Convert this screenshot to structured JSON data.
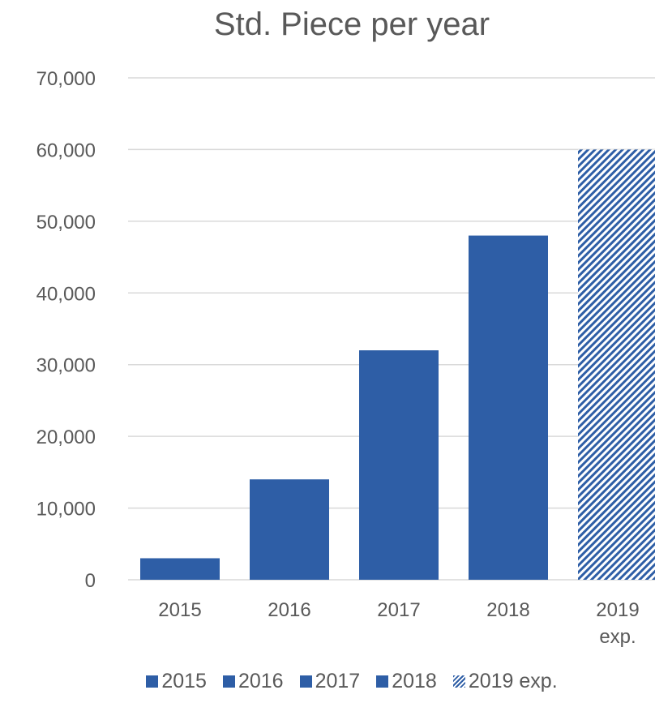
{
  "chart_data": {
    "type": "bar",
    "title": "Std. Piece per year",
    "categories": [
      "2015",
      "2016",
      "2017",
      "2018",
      "2019 exp."
    ],
    "category_labels": [
      [
        "2015"
      ],
      [
        "2016"
      ],
      [
        "2017"
      ],
      [
        "2018"
      ],
      [
        "2019",
        "exp."
      ]
    ],
    "values": [
      3000,
      14000,
      32000,
      48000,
      60000
    ],
    "ylim": [
      0,
      70000
    ],
    "y_ticks": [
      "0",
      "10,000",
      "20,000",
      "30,000",
      "40,000",
      "50,000",
      "60,000",
      "70,000"
    ],
    "y_tick_values": [
      0,
      10000,
      20000,
      30000,
      40000,
      50000,
      60000,
      70000
    ],
    "grid": true,
    "legend_position": "bottom",
    "legend": [
      "2015",
      "2016",
      "2017",
      "2018",
      "2019 exp."
    ],
    "colors": {
      "bar": "#2e5ea6",
      "grid": "#d9d9d9",
      "text": "#595959"
    },
    "hatched_categories": [
      "2019 exp."
    ]
  }
}
